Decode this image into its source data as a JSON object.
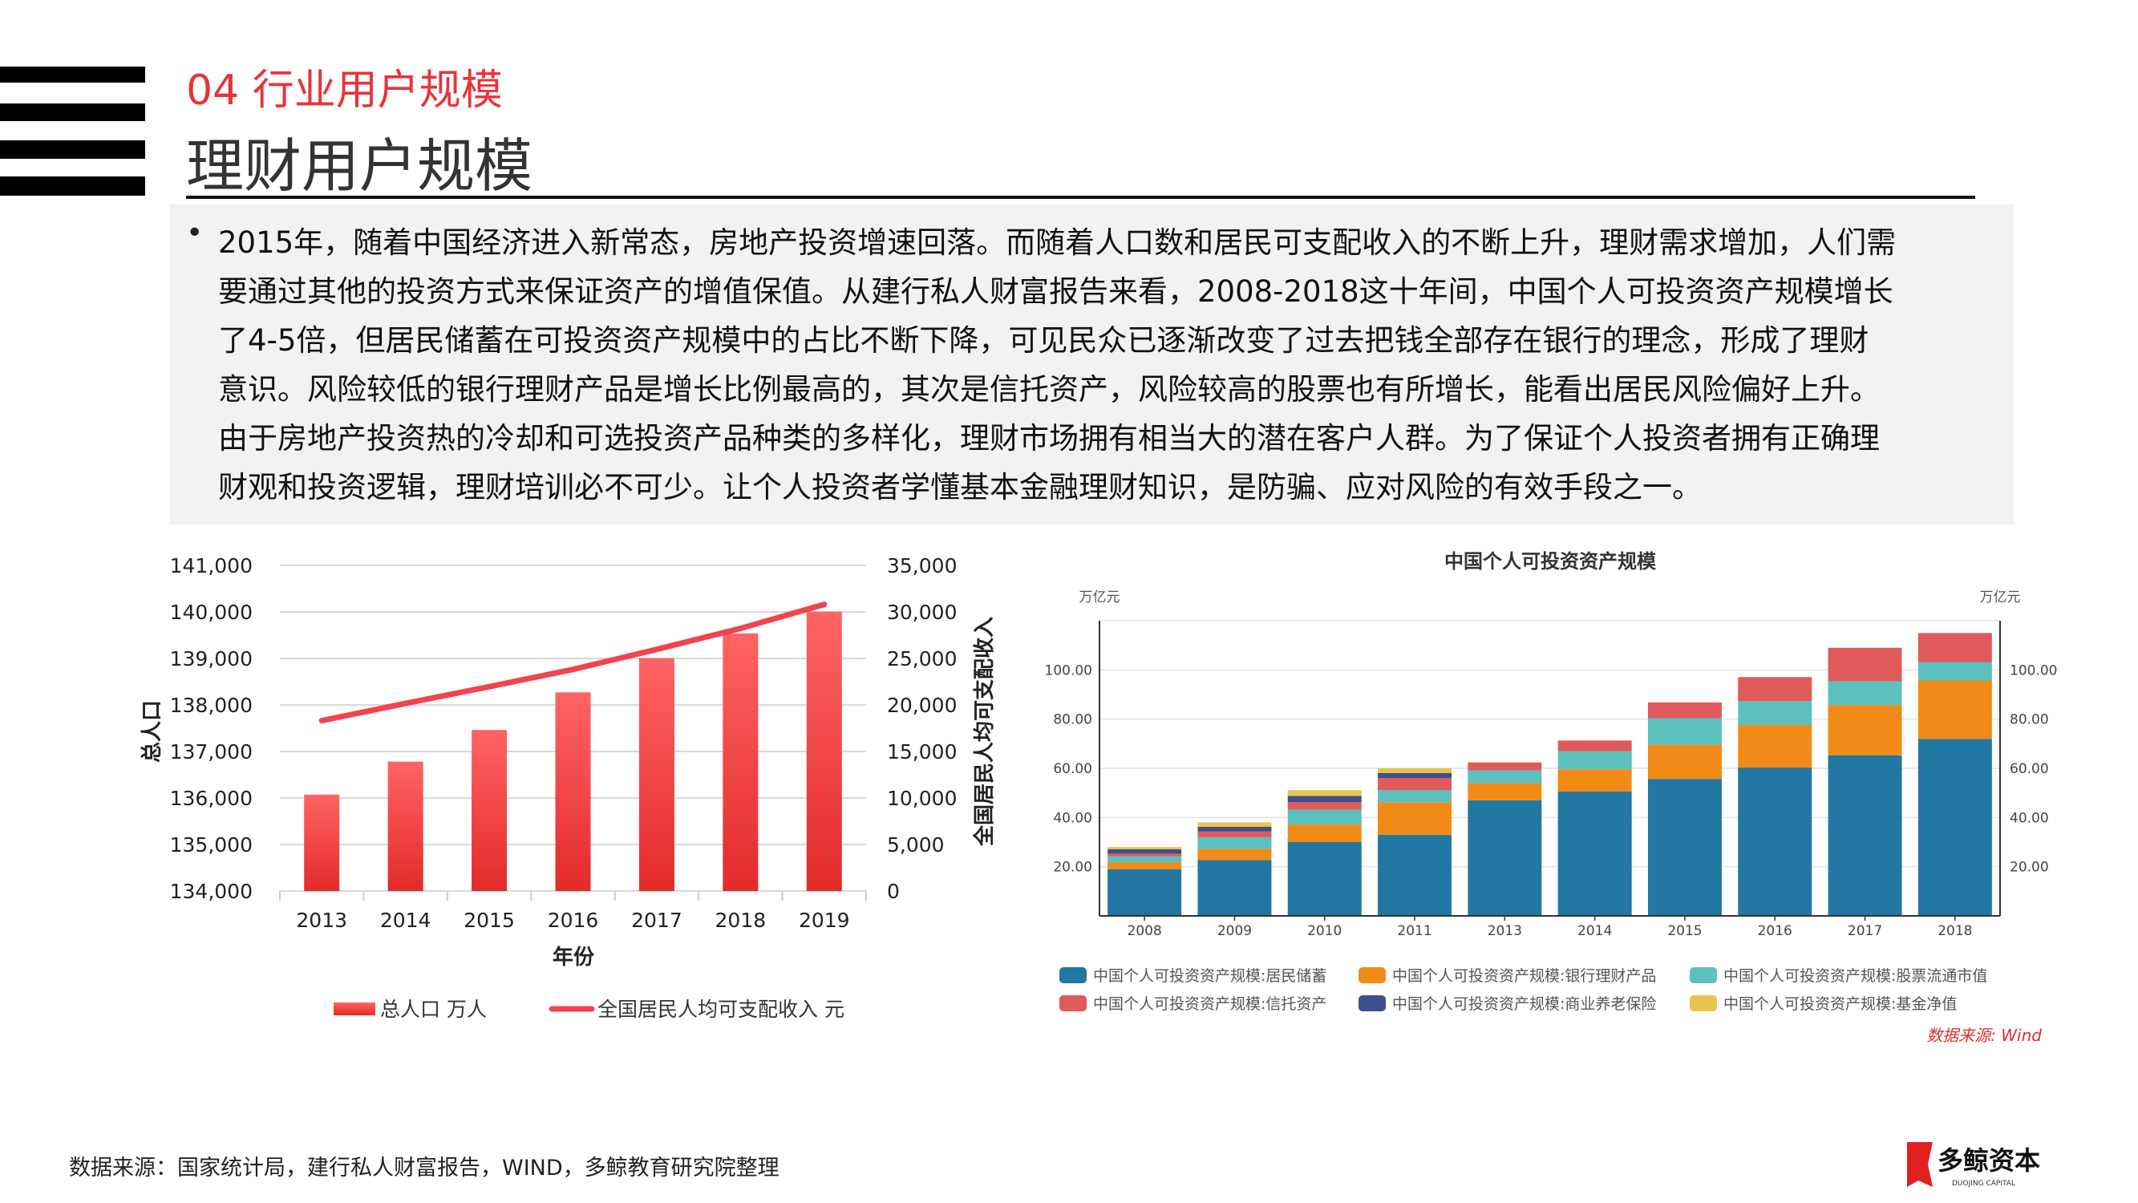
{
  "header": {
    "section": "04 行业用户规模",
    "title": "理财用户规模"
  },
  "body": {
    "lines": [
      "2015年，随着中国经济进入新常态，房地产投资增速回落。而随着人口数和居民可支配收入的不断上升，理财需求增加，人们需",
      "要通过其他的投资方式来保证资产的增值保值。从建行私人财富报告来看，2008-2018这十年间，中国个人可投资资产规模增长",
      "了4-5倍，但居民储蓄在可投资资产规模中的占比不断下降，可见民众已逐渐改变了过去把钱全部存在银行的理念，形成了理财",
      "意识。风险较低的银行理财产品是增长比例最高的，其次是信托资产，风险较高的股票也有所增长，能看出居民风险偏好上升。",
      "由于房地产投资热的冷却和可选投资产品种类的多样化，理财市场拥有相当大的潜在客户人群。为了保证个人投资者拥有正确理",
      "财观和投资逻辑，理财培训必不可少。让个人投资者学懂基本金融理财知识，是防骗、应对风险的有效手段之一。"
    ]
  },
  "footer": {
    "source": "数据来源：国家统计局，建行私人财富报告，WIND，多鲸教育研究院整理",
    "logo_text": "多鲸资本",
    "logo_sub": "DUOJING CAPITAL"
  },
  "colors": {
    "accent": "#e8333a"
  },
  "chart_data": [
    {
      "type": "bar+line",
      "categories": [
        "2013",
        "2014",
        "2015",
        "2016",
        "2017",
        "2018",
        "2019"
      ],
      "xlabel": "年份",
      "ylabel": "总人口",
      "y2label": "全国居民人均可支配收入",
      "ylim": [
        134000,
        141000
      ],
      "y2lim": [
        0,
        35000
      ],
      "yticks": [
        "134,000",
        "135,000",
        "136,000",
        "137,000",
        "138,000",
        "139,000",
        "140,000",
        "141,000"
      ],
      "y2ticks": [
        "0",
        "5,000",
        "10,000",
        "15,000",
        "20,000",
        "25,000",
        "30,000",
        "35,000"
      ],
      "grid": true,
      "legend": "bottom",
      "series": [
        {
          "name": "总人口 万人",
          "type": "bar",
          "axis": "left",
          "color": "#f03a3f",
          "values": [
            136072,
            136782,
            137462,
            138271,
            139008,
            139538,
            140005
          ]
        },
        {
          "name": "全国居民人均可支配收入 元",
          "type": "line",
          "axis": "right",
          "color": "#f04450",
          "values": [
            18311,
            20167,
            21966,
            23821,
            25974,
            28228,
            30810
          ]
        }
      ]
    },
    {
      "type": "stacked-bar",
      "title": "中国个人可投资资产规模",
      "yunit": "万亿元",
      "y2unit": "万亿元",
      "categories": [
        "2008",
        "2009",
        "2010",
        "2011",
        "2013",
        "2014",
        "2015",
        "2016",
        "2017",
        "2018"
      ],
      "ylim": [
        0,
        120
      ],
      "yticks": [
        "20.00",
        "40.00",
        "60.00",
        "80.00",
        "100.00"
      ],
      "grid": true,
      "legend": "bottom",
      "source": "数据来源: Wind",
      "series": [
        {
          "name": "中国个人可投资资产规模:居民储蓄",
          "color": "#2277a3",
          "values": [
            19,
            22.7,
            30,
            33,
            47,
            50.6,
            55.7,
            60.3,
            65.3,
            72
          ]
        },
        {
          "name": "中国个人可投资资产规模:银行理财产品",
          "color": "#f28a17",
          "values": [
            2.8,
            4.5,
            7.2,
            13.2,
            7,
            9,
            13.9,
            17.3,
            20.4,
            23.7
          ]
        },
        {
          "name": "中国个人可投资资产规模:股票流通市值",
          "color": "#5bc0be",
          "values": [
            2.4,
            4.8,
            6,
            4.9,
            5.2,
            7.4,
            10.8,
            9.7,
            9.7,
            7.5
          ]
        },
        {
          "name": "中国个人可投资资产规模:信托资产",
          "color": "#e05a5a",
          "values": [
            1.1,
            2.4,
            3.1,
            4.9,
            3.2,
            4.3,
            6.4,
            9.8,
            13.6,
            11.8
          ]
        },
        {
          "name": "中国个人可投资资产规模:商业养老保险",
          "color": "#3f4e8c",
          "values": [
            1.8,
            1.8,
            2.5,
            2.1,
            0,
            0,
            0,
            0,
            0,
            0
          ]
        },
        {
          "name": "中国个人可投资资产规模:基金净值",
          "color": "#e8c44c",
          "values": [
            0.9,
            1.8,
            2.3,
            1.9,
            0,
            0,
            0,
            0,
            0,
            0
          ]
        }
      ]
    }
  ]
}
